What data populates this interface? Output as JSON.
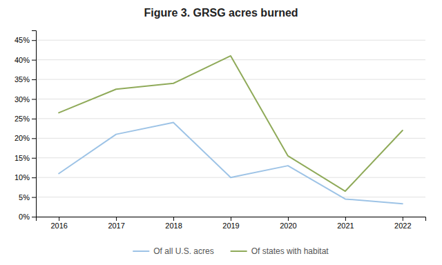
{
  "chart_data": {
    "type": "line",
    "title": "Figure 3. GRSG acres burned",
    "x": [
      2016,
      2017,
      2018,
      2019,
      2020,
      2021,
      2022
    ],
    "series": [
      {
        "name": "Of all U.S. acres",
        "color": "#9dc3e6",
        "values": [
          0.11,
          0.21,
          0.24,
          0.1,
          0.13,
          0.045,
          0.033
        ]
      },
      {
        "name": "Of states with habitat",
        "color": "#8faa59",
        "values": [
          0.265,
          0.325,
          0.34,
          0.41,
          0.155,
          0.065,
          0.22
        ]
      }
    ],
    "xlim": [
      2015.6,
      2022.4
    ],
    "xticks": [
      2016,
      2017,
      2018,
      2019,
      2020,
      2021,
      2022
    ],
    "ylim": [
      0.0,
      0.475
    ],
    "yticks": [
      {
        "value": 0.0,
        "label": "0%"
      },
      {
        "value": 0.05,
        "label": "5%"
      },
      {
        "value": 0.1,
        "label": "10%"
      },
      {
        "value": 0.15,
        "label": "15%"
      },
      {
        "value": 0.2,
        "label": "20%"
      },
      {
        "value": 0.25,
        "label": "25%"
      },
      {
        "value": 0.3,
        "label": "30%"
      },
      {
        "value": 0.35,
        "label": "35%"
      },
      {
        "value": 0.4,
        "label": "40%"
      },
      {
        "value": 0.45,
        "label": "45%"
      }
    ],
    "grid": true,
    "legend": "bottom"
  }
}
